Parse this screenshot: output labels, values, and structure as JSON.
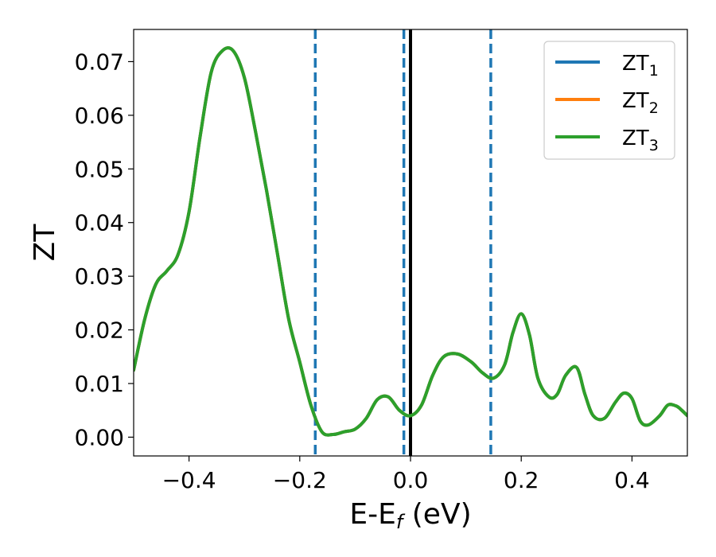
{
  "chart_data": {
    "type": "line",
    "xlabel": "E-E",
    "xlabel_subscript": "f",
    "xlabel_suffix": " (eV)",
    "ylabel": "ZT",
    "xlim": [
      -0.5,
      0.5
    ],
    "ylim": [
      -0.0035,
      0.076
    ],
    "xticks": [
      -0.4,
      -0.2,
      0.0,
      0.2,
      0.4
    ],
    "xtick_labels": [
      "−0.4",
      "−0.2",
      "0.0",
      "0.2",
      "0.4"
    ],
    "yticks": [
      0.0,
      0.01,
      0.02,
      0.03,
      0.04,
      0.05,
      0.06,
      0.07
    ],
    "ytick_labels": [
      "0.00",
      "0.01",
      "0.02",
      "0.03",
      "0.04",
      "0.05",
      "0.06",
      "0.07"
    ],
    "grid": false,
    "legend_position": "top-right",
    "vlines": [
      {
        "x": -0.172,
        "style": "dashed",
        "color": "#1f77b4"
      },
      {
        "x": -0.012,
        "style": "dashed",
        "color": "#1f77b4"
      },
      {
        "x": 0.145,
        "style": "dashed",
        "color": "#1f77b4"
      },
      {
        "x": 0.0,
        "style": "solid",
        "color": "#000000"
      }
    ],
    "series": [
      {
        "name": "ZT",
        "subscript": "1",
        "color": "#1f77b4"
      },
      {
        "name": "ZT",
        "subscript": "2",
        "color": "#ff7f0e"
      },
      {
        "name": "ZT",
        "subscript": "3",
        "color": "#2ca02c"
      }
    ],
    "x": [
      -0.5,
      -0.48,
      -0.46,
      -0.44,
      -0.42,
      -0.4,
      -0.38,
      -0.36,
      -0.34,
      -0.32,
      -0.3,
      -0.28,
      -0.26,
      -0.24,
      -0.22,
      -0.2,
      -0.18,
      -0.16,
      -0.14,
      -0.12,
      -0.1,
      -0.08,
      -0.06,
      -0.04,
      -0.02,
      0.0,
      0.02,
      0.04,
      0.06,
      0.085,
      0.11,
      0.13,
      0.15,
      0.17,
      0.185,
      0.2,
      0.215,
      0.23,
      0.25,
      0.265,
      0.28,
      0.3,
      0.315,
      0.33,
      0.35,
      0.37,
      0.385,
      0.4,
      0.415,
      0.43,
      0.45,
      0.465,
      0.48,
      0.49,
      0.5
    ],
    "y": [
      0.0125,
      0.022,
      0.0285,
      0.031,
      0.034,
      0.042,
      0.056,
      0.068,
      0.072,
      0.072,
      0.067,
      0.057,
      0.046,
      0.034,
      0.022,
      0.014,
      0.006,
      0.001,
      0.0005,
      0.001,
      0.0015,
      0.0035,
      0.007,
      0.0075,
      0.005,
      0.004,
      0.006,
      0.0115,
      0.015,
      0.0155,
      0.014,
      0.012,
      0.011,
      0.0135,
      0.0195,
      0.023,
      0.019,
      0.011,
      0.0075,
      0.008,
      0.0115,
      0.013,
      0.008,
      0.004,
      0.0035,
      0.0065,
      0.0082,
      0.0072,
      0.003,
      0.0023,
      0.004,
      0.006,
      0.0058,
      0.005,
      0.004
    ]
  }
}
